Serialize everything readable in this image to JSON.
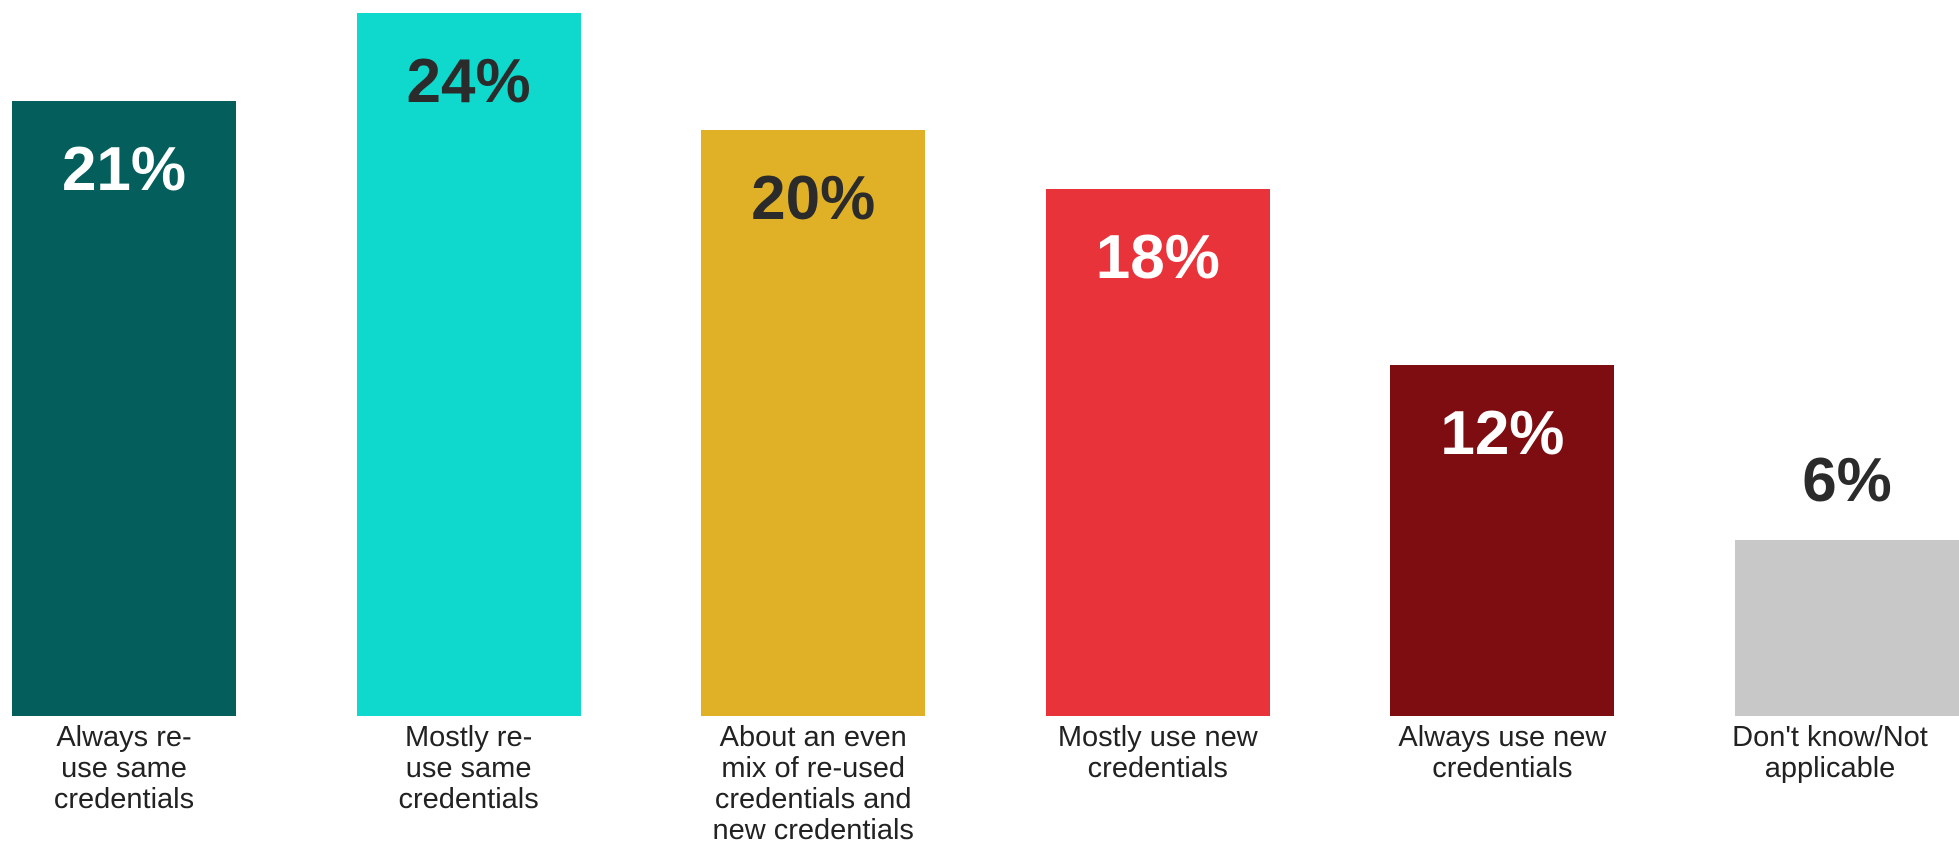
{
  "chart_data": {
    "type": "bar",
    "categories": [
      "Always re-\nuse same\ncredentials",
      "Mostly re-\nuse same\ncredentials",
      "About an even\nmix of re-used\ncredentials and\nnew credentials",
      "Mostly use new\ncredentials",
      "Always use new\ncredentials",
      "Don't know/Not\napplicable"
    ],
    "values": [
      21,
      24,
      20,
      18,
      12,
      6
    ],
    "value_labels": [
      "21%",
      "24%",
      "20%",
      "18%",
      "12%",
      "6%"
    ],
    "bar_colors": [
      "#045e5c",
      "#0fd8cc",
      "#e0b126",
      "#e8333a",
      "#7d0d11",
      "#c8c8c8"
    ],
    "label_colors": [
      "#ffffff",
      "#2b2b2b",
      "#2b2b2b",
      "#ffffff",
      "#ffffff",
      "#2b2b2b"
    ],
    "label_position": [
      "inside",
      "inside",
      "inside",
      "inside",
      "inside",
      "outside"
    ],
    "ylim": [
      0,
      24
    ],
    "title": "",
    "xlabel": "",
    "ylabel": "",
    "grid": false,
    "legend": false
  }
}
